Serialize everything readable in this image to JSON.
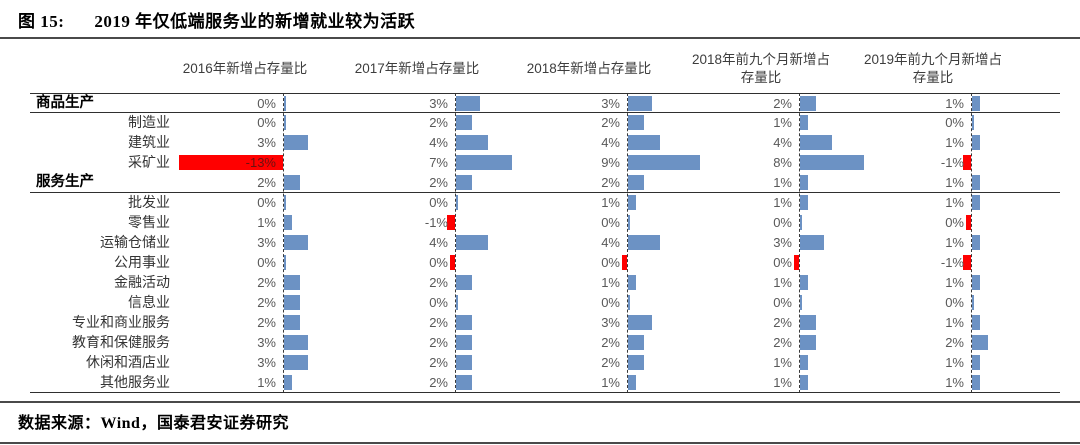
{
  "title": {
    "prefix": "图 15:",
    "text": "2019 年仅低端服务业的新增就业较为活跃"
  },
  "footer": {
    "source": "数据来源：Wind，国泰君安证券研究"
  },
  "colors": {
    "bar_positive": "#6C92C4",
    "bar_negative": "#FF0000",
    "value_text": "#595959",
    "big_negative_value_text": "#6b1111",
    "line": "#2f2f2f"
  },
  "chart_data": {
    "type": "bar",
    "orientation": "horizontal",
    "unit": "percent",
    "title": "2019 年仅低端服务业的新增就业较为活跃",
    "legend_position": "none",
    "grid": false,
    "columns": [
      "2016年新增占存量比",
      "2017年新增占存量比",
      "2018年新增占存量比",
      "2018年前九个月新增占\n存量比",
      "2019年前九个月新增占\n存量比"
    ],
    "rows": [
      {
        "label": "商品生产",
        "group": true,
        "values": [
          0,
          3,
          3,
          2,
          1
        ],
        "display": [
          "0%",
          "3%",
          "3%",
          "2%",
          "1%"
        ],
        "red": [
          false,
          false,
          false,
          false,
          false
        ]
      },
      {
        "label": "制造业",
        "group": false,
        "values": [
          0,
          2,
          2,
          1,
          0
        ],
        "display": [
          "0%",
          "2%",
          "2%",
          "1%",
          "0%"
        ],
        "red": [
          false,
          false,
          false,
          false,
          false
        ]
      },
      {
        "label": "建筑业",
        "group": false,
        "values": [
          3,
          4,
          4,
          4,
          1
        ],
        "display": [
          "3%",
          "4%",
          "4%",
          "4%",
          "1%"
        ],
        "red": [
          false,
          false,
          false,
          false,
          false
        ]
      },
      {
        "label": "采矿业",
        "group": false,
        "values": [
          -13,
          7,
          9,
          8,
          -1
        ],
        "display": [
          "-13%",
          "7%",
          "9%",
          "8%",
          "-1%"
        ],
        "red": [
          true,
          false,
          false,
          false,
          true
        ]
      },
      {
        "label": "服务生产",
        "group": true,
        "values": [
          2,
          2,
          2,
          1,
          1
        ],
        "display": [
          "2%",
          "2%",
          "2%",
          "1%",
          "1%"
        ],
        "red": [
          false,
          false,
          false,
          false,
          false
        ]
      },
      {
        "label": "批发业",
        "group": false,
        "values": [
          0,
          0,
          1,
          1,
          1
        ],
        "display": [
          "0%",
          "0%",
          "1%",
          "1%",
          "1%"
        ],
        "red": [
          false,
          false,
          false,
          false,
          false
        ]
      },
      {
        "label": "零售业",
        "group": false,
        "values": [
          1,
          -1,
          0,
          0,
          0
        ],
        "display": [
          "1%",
          "-1%",
          "0%",
          "0%",
          "0%"
        ],
        "red": [
          false,
          true,
          false,
          false,
          true
        ]
      },
      {
        "label": "运输仓储业",
        "group": false,
        "values": [
          3,
          4,
          4,
          3,
          1
        ],
        "display": [
          "3%",
          "4%",
          "4%",
          "3%",
          "1%"
        ],
        "red": [
          false,
          false,
          false,
          false,
          false
        ]
      },
      {
        "label": "公用事业",
        "group": false,
        "values": [
          0,
          0,
          0,
          0,
          -1
        ],
        "display": [
          "0%",
          "0%",
          "0%",
          "0%",
          "-1%"
        ],
        "red": [
          false,
          true,
          true,
          true,
          true
        ]
      },
      {
        "label": "金融活动",
        "group": false,
        "values": [
          2,
          2,
          1,
          1,
          1
        ],
        "display": [
          "2%",
          "2%",
          "1%",
          "1%",
          "1%"
        ],
        "red": [
          false,
          false,
          false,
          false,
          false
        ]
      },
      {
        "label": "信息业",
        "group": false,
        "values": [
          2,
          0,
          0,
          0,
          0
        ],
        "display": [
          "2%",
          "0%",
          "0%",
          "0%",
          "0%"
        ],
        "red": [
          false,
          false,
          false,
          false,
          false
        ]
      },
      {
        "label": "专业和商业服务",
        "group": false,
        "values": [
          2,
          2,
          3,
          2,
          1
        ],
        "display": [
          "2%",
          "2%",
          "3%",
          "2%",
          "1%"
        ],
        "red": [
          false,
          false,
          false,
          false,
          false
        ]
      },
      {
        "label": "教育和保健服务",
        "group": false,
        "values": [
          3,
          2,
          2,
          2,
          2
        ],
        "display": [
          "3%",
          "2%",
          "2%",
          "2%",
          "2%"
        ],
        "red": [
          false,
          false,
          false,
          false,
          false
        ]
      },
      {
        "label": "休闲和酒店业",
        "group": false,
        "values": [
          3,
          2,
          2,
          1,
          1
        ],
        "display": [
          "3%",
          "2%",
          "2%",
          "1%",
          "1%"
        ],
        "red": [
          false,
          false,
          false,
          false,
          false
        ]
      },
      {
        "label": "其他服务业",
        "group": false,
        "values": [
          1,
          2,
          1,
          1,
          1
        ],
        "display": [
          "1%",
          "2%",
          "1%",
          "1%",
          "1%"
        ],
        "red": [
          false,
          false,
          false,
          false,
          false
        ]
      }
    ]
  }
}
